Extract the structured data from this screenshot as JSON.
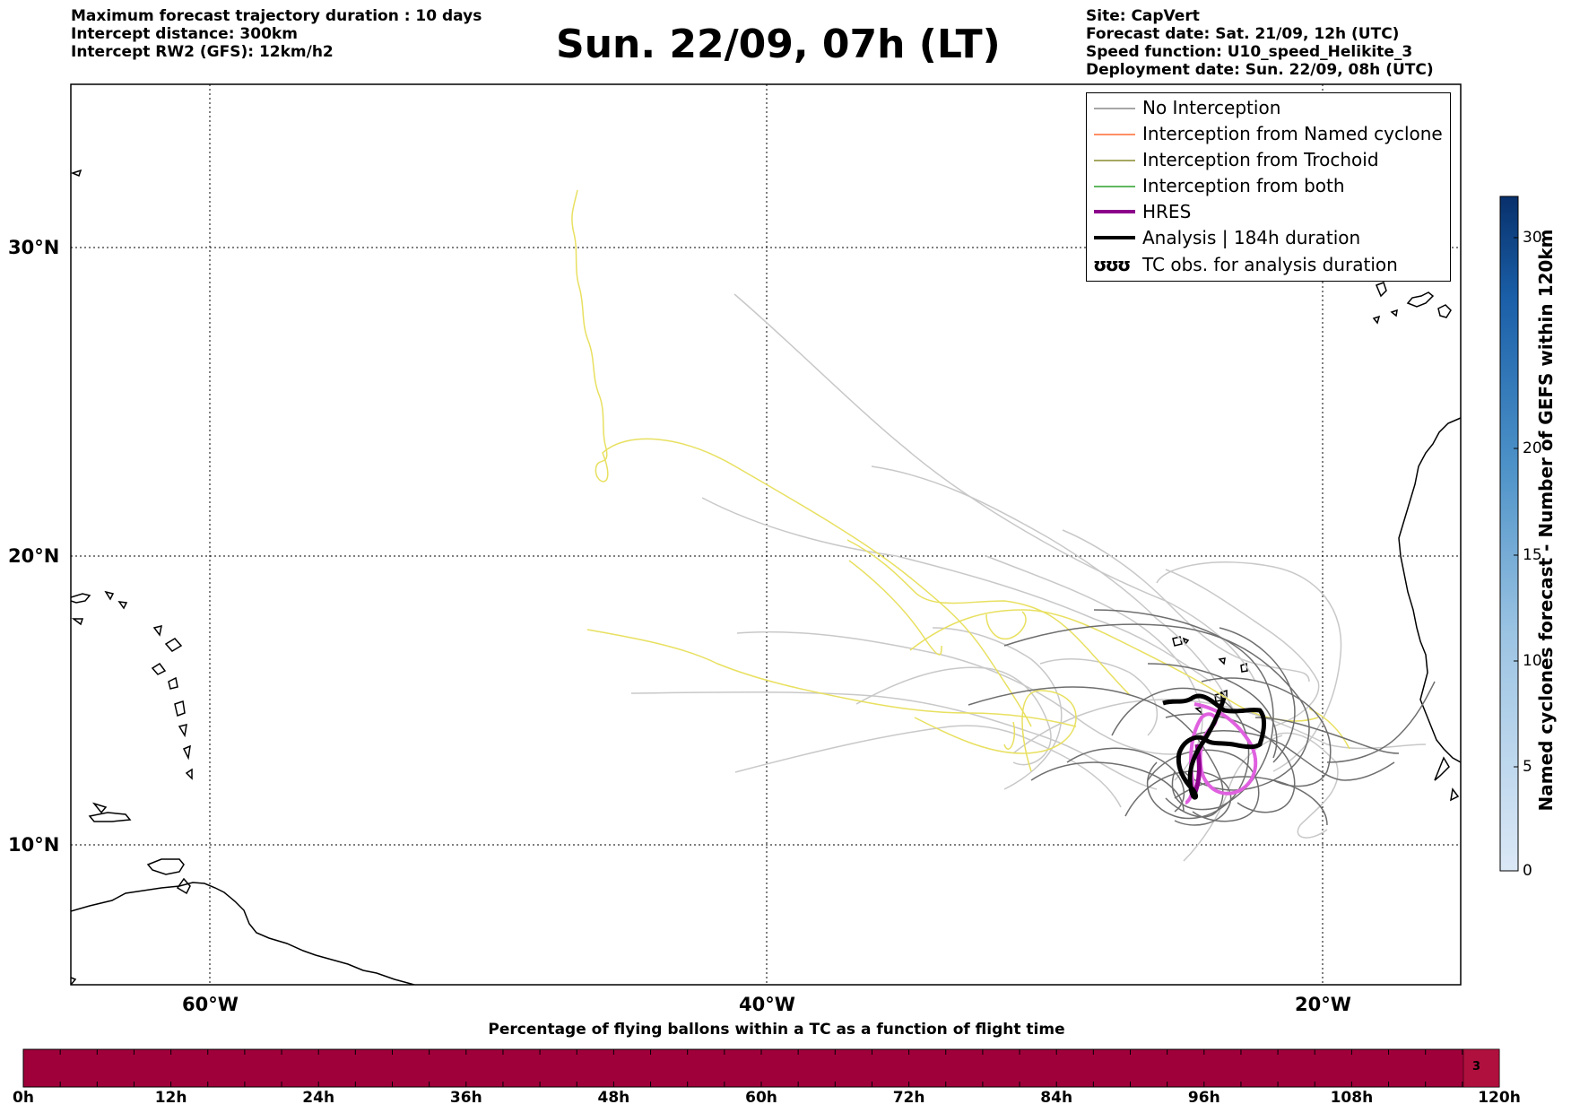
{
  "header": {
    "left_lines": [
      "Maximum forecast trajectory duration : 10 days",
      "Intercept distance: 300km",
      "Intercept RW2 (GFS):  12km/h2"
    ],
    "title": "Sun. 22/09, 07h (LT)",
    "right_lines": [
      "Site: CapVert",
      "Forecast date: Sat. 21/09, 12h (UTC)",
      "Speed function: U10_speed_Helikite_3",
      "Deployment date: Sun. 22/09, 08h (UTC)"
    ]
  },
  "map": {
    "lon_labels": [
      "60°W",
      "40°W",
      "20°W"
    ],
    "lat_labels": [
      "30°N",
      "20°N",
      "10°N"
    ],
    "grid_style": "dotted"
  },
  "legend": {
    "items": [
      {
        "label": "No Interception",
        "color": "#888888",
        "width": 1
      },
      {
        "label": "Interception from Named cyclone",
        "color": "#ff6a30",
        "width": 1
      },
      {
        "label": "Interception from Trochoid",
        "color": "#8a8a2e",
        "width": 1
      },
      {
        "label": "Interception from both",
        "color": "#2ca02c",
        "width": 1
      },
      {
        "label": "HRES",
        "color": "#8b008b",
        "width": 4
      },
      {
        "label": "Analysis | 184h duration",
        "color": "#000000",
        "width": 4
      }
    ],
    "tc_item": {
      "symbols": "ʊʊʊ",
      "label": "TC obs. for analysis duration"
    }
  },
  "colorbar": {
    "title": "Named cyclones forecast - Number of GEFS within 120km",
    "ticks": [
      "0",
      "5",
      "10",
      "15",
      "20",
      "30"
    ]
  },
  "progress": {
    "title": "Percentage of flying ballons within a TC as a function of flight time",
    "time_labels": [
      "0h",
      "12h",
      "24h",
      "36h",
      "48h",
      "60h",
      "72h",
      "84h",
      "96h",
      "108h",
      "120h"
    ],
    "segment_value": "3",
    "fill_color": "#a0003a"
  }
}
